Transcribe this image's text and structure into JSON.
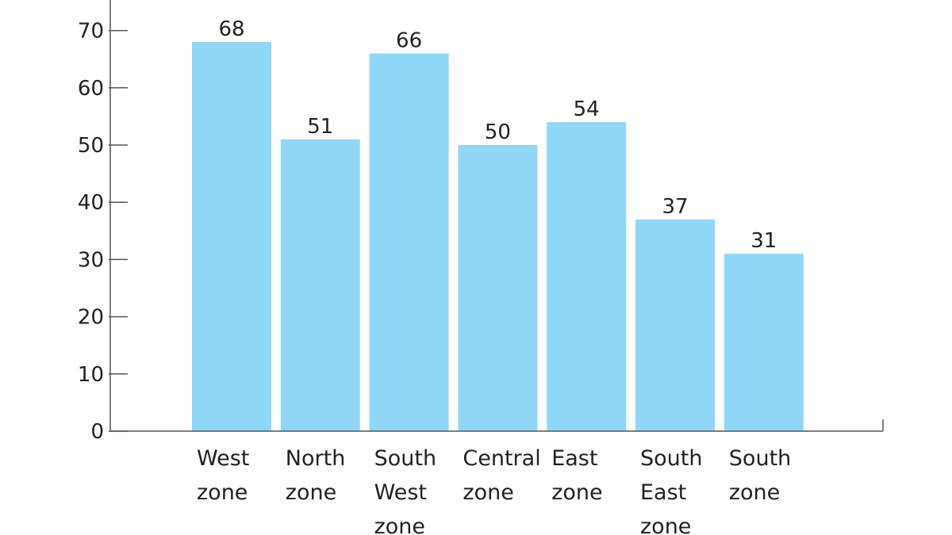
{
  "chart_data": {
    "type": "bar",
    "title": "",
    "xlabel": "",
    "ylabel": "",
    "categories": [
      [
        "West",
        "zone"
      ],
      [
        "North",
        "zone"
      ],
      [
        "South",
        "West",
        "zone"
      ],
      [
        "Central",
        "zone"
      ],
      [
        "East",
        "zone"
      ],
      [
        "South",
        "East",
        "zone"
      ],
      [
        "South",
        "zone"
      ]
    ],
    "values": [
      68,
      51,
      66,
      50,
      54,
      37,
      31
    ],
    "ylim": [
      0,
      75
    ],
    "yticks": [
      0,
      10,
      20,
      30,
      40,
      50,
      60,
      70
    ],
    "grid": false,
    "legend": "none",
    "bar_color": "#8fd6f7",
    "axis_color": "#555555",
    "text_color": "#222222"
  }
}
